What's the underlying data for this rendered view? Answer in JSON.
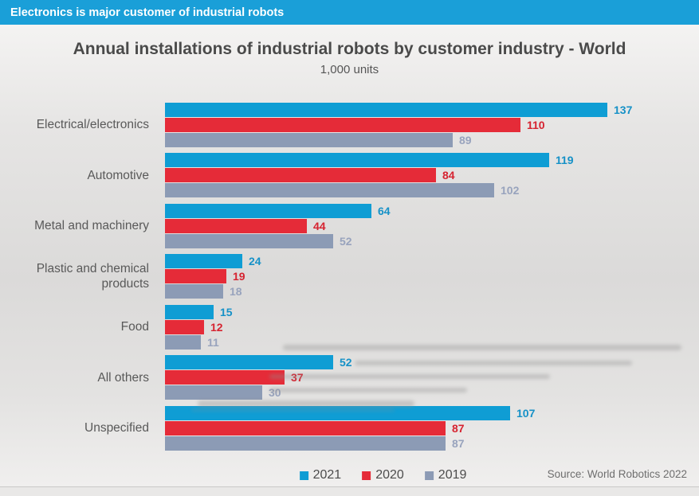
{
  "banner": {
    "text": "Electronics is major customer of industrial robots"
  },
  "header": {
    "title": "Annual installations of industrial robots by customer industry - World",
    "subtitle": "1,000 units"
  },
  "footer": {
    "source": "Source: World Robotics 2022"
  },
  "colors": {
    "banner_bg": "#1a9fd8",
    "series_2021": "#0f9dd4",
    "series_2020": "#e52b38",
    "series_2019": "#8c9bb5"
  },
  "chart_data": {
    "type": "bar",
    "orientation": "horizontal",
    "title": "Annual installations of industrial robots by customer industry - World",
    "units": "1,000 units",
    "grid": false,
    "legend_position": "bottom",
    "value_axis_max": 140,
    "categories": [
      "Electrical/electronics",
      "Automotive",
      "Metal and machinery",
      "Plastic and chemical\nproducts",
      "Food",
      "All others",
      "Unspecified"
    ],
    "series": [
      {
        "name": "2021",
        "color": "#0f9dd4",
        "label_color": "#1691c7",
        "values": [
          137,
          119,
          64,
          24,
          15,
          52,
          107
        ]
      },
      {
        "name": "2020",
        "color": "#e52b38",
        "label_color": "#d62330",
        "values": [
          110,
          84,
          44,
          19,
          12,
          37,
          87
        ]
      },
      {
        "name": "2019",
        "color": "#8c9bb5",
        "label_color": "#98a3bd",
        "values": [
          89,
          102,
          52,
          18,
          11,
          30,
          87
        ]
      }
    ],
    "source": "Source: World Robotics 2022"
  }
}
